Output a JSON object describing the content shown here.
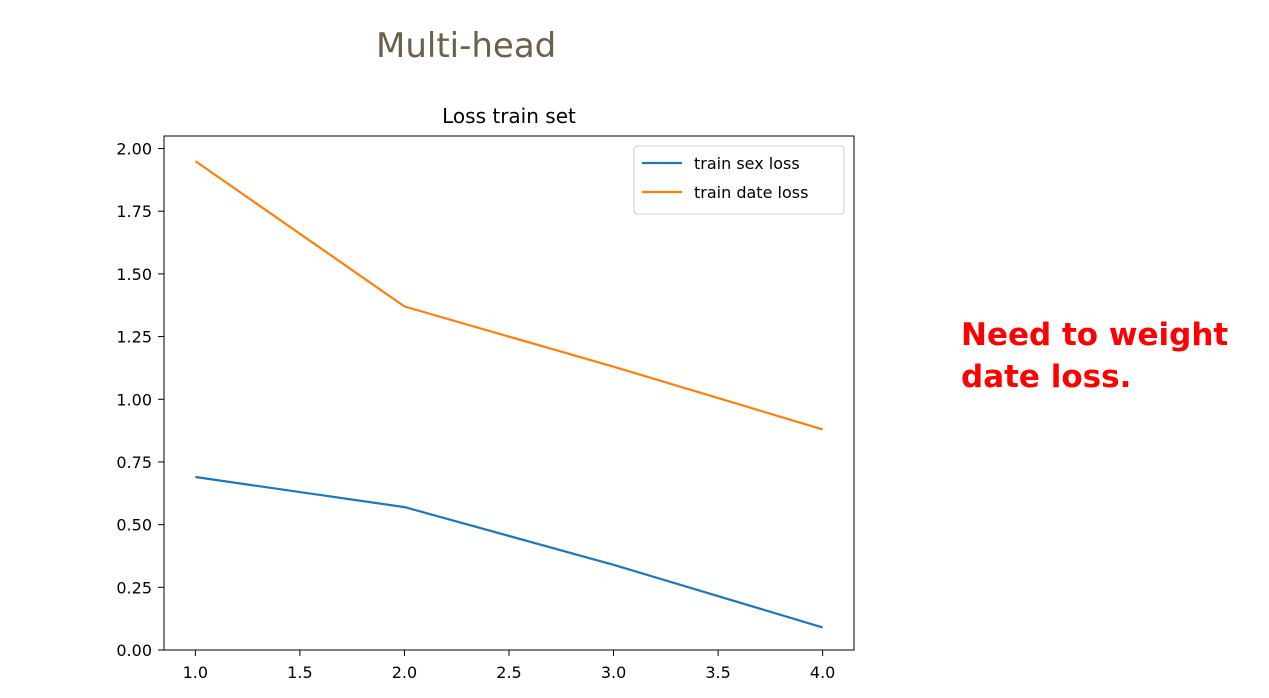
{
  "slide": {
    "title": "Multi-head",
    "note": "Need to weight date loss."
  },
  "chart_data": {
    "type": "line",
    "title": "Loss train set",
    "xlabel": "",
    "ylabel": "",
    "xlim": [
      0.85,
      4.15
    ],
    "ylim": [
      0.0,
      2.05
    ],
    "xticks": [
      1.0,
      1.5,
      2.0,
      2.5,
      3.0,
      3.5,
      4.0
    ],
    "xtick_labels": [
      "1.0",
      "1.5",
      "2.0",
      "2.5",
      "3.0",
      "3.5",
      "4.0"
    ],
    "yticks": [
      0.0,
      0.25,
      0.5,
      0.75,
      1.0,
      1.25,
      1.5,
      1.75,
      2.0
    ],
    "ytick_labels": [
      "0.00",
      "0.25",
      "0.50",
      "0.75",
      "1.00",
      "1.25",
      "1.50",
      "1.75",
      "2.00"
    ],
    "grid": false,
    "legend_position": "top-right",
    "x": [
      1,
      2,
      3,
      4
    ],
    "series": [
      {
        "name": "train sex loss",
        "color": "#1f77b4",
        "values": [
          0.69,
          0.57,
          0.34,
          0.09
        ]
      },
      {
        "name": "train date loss",
        "color": "#ff7f0e",
        "values": [
          1.95,
          1.37,
          1.13,
          0.88
        ]
      }
    ]
  }
}
